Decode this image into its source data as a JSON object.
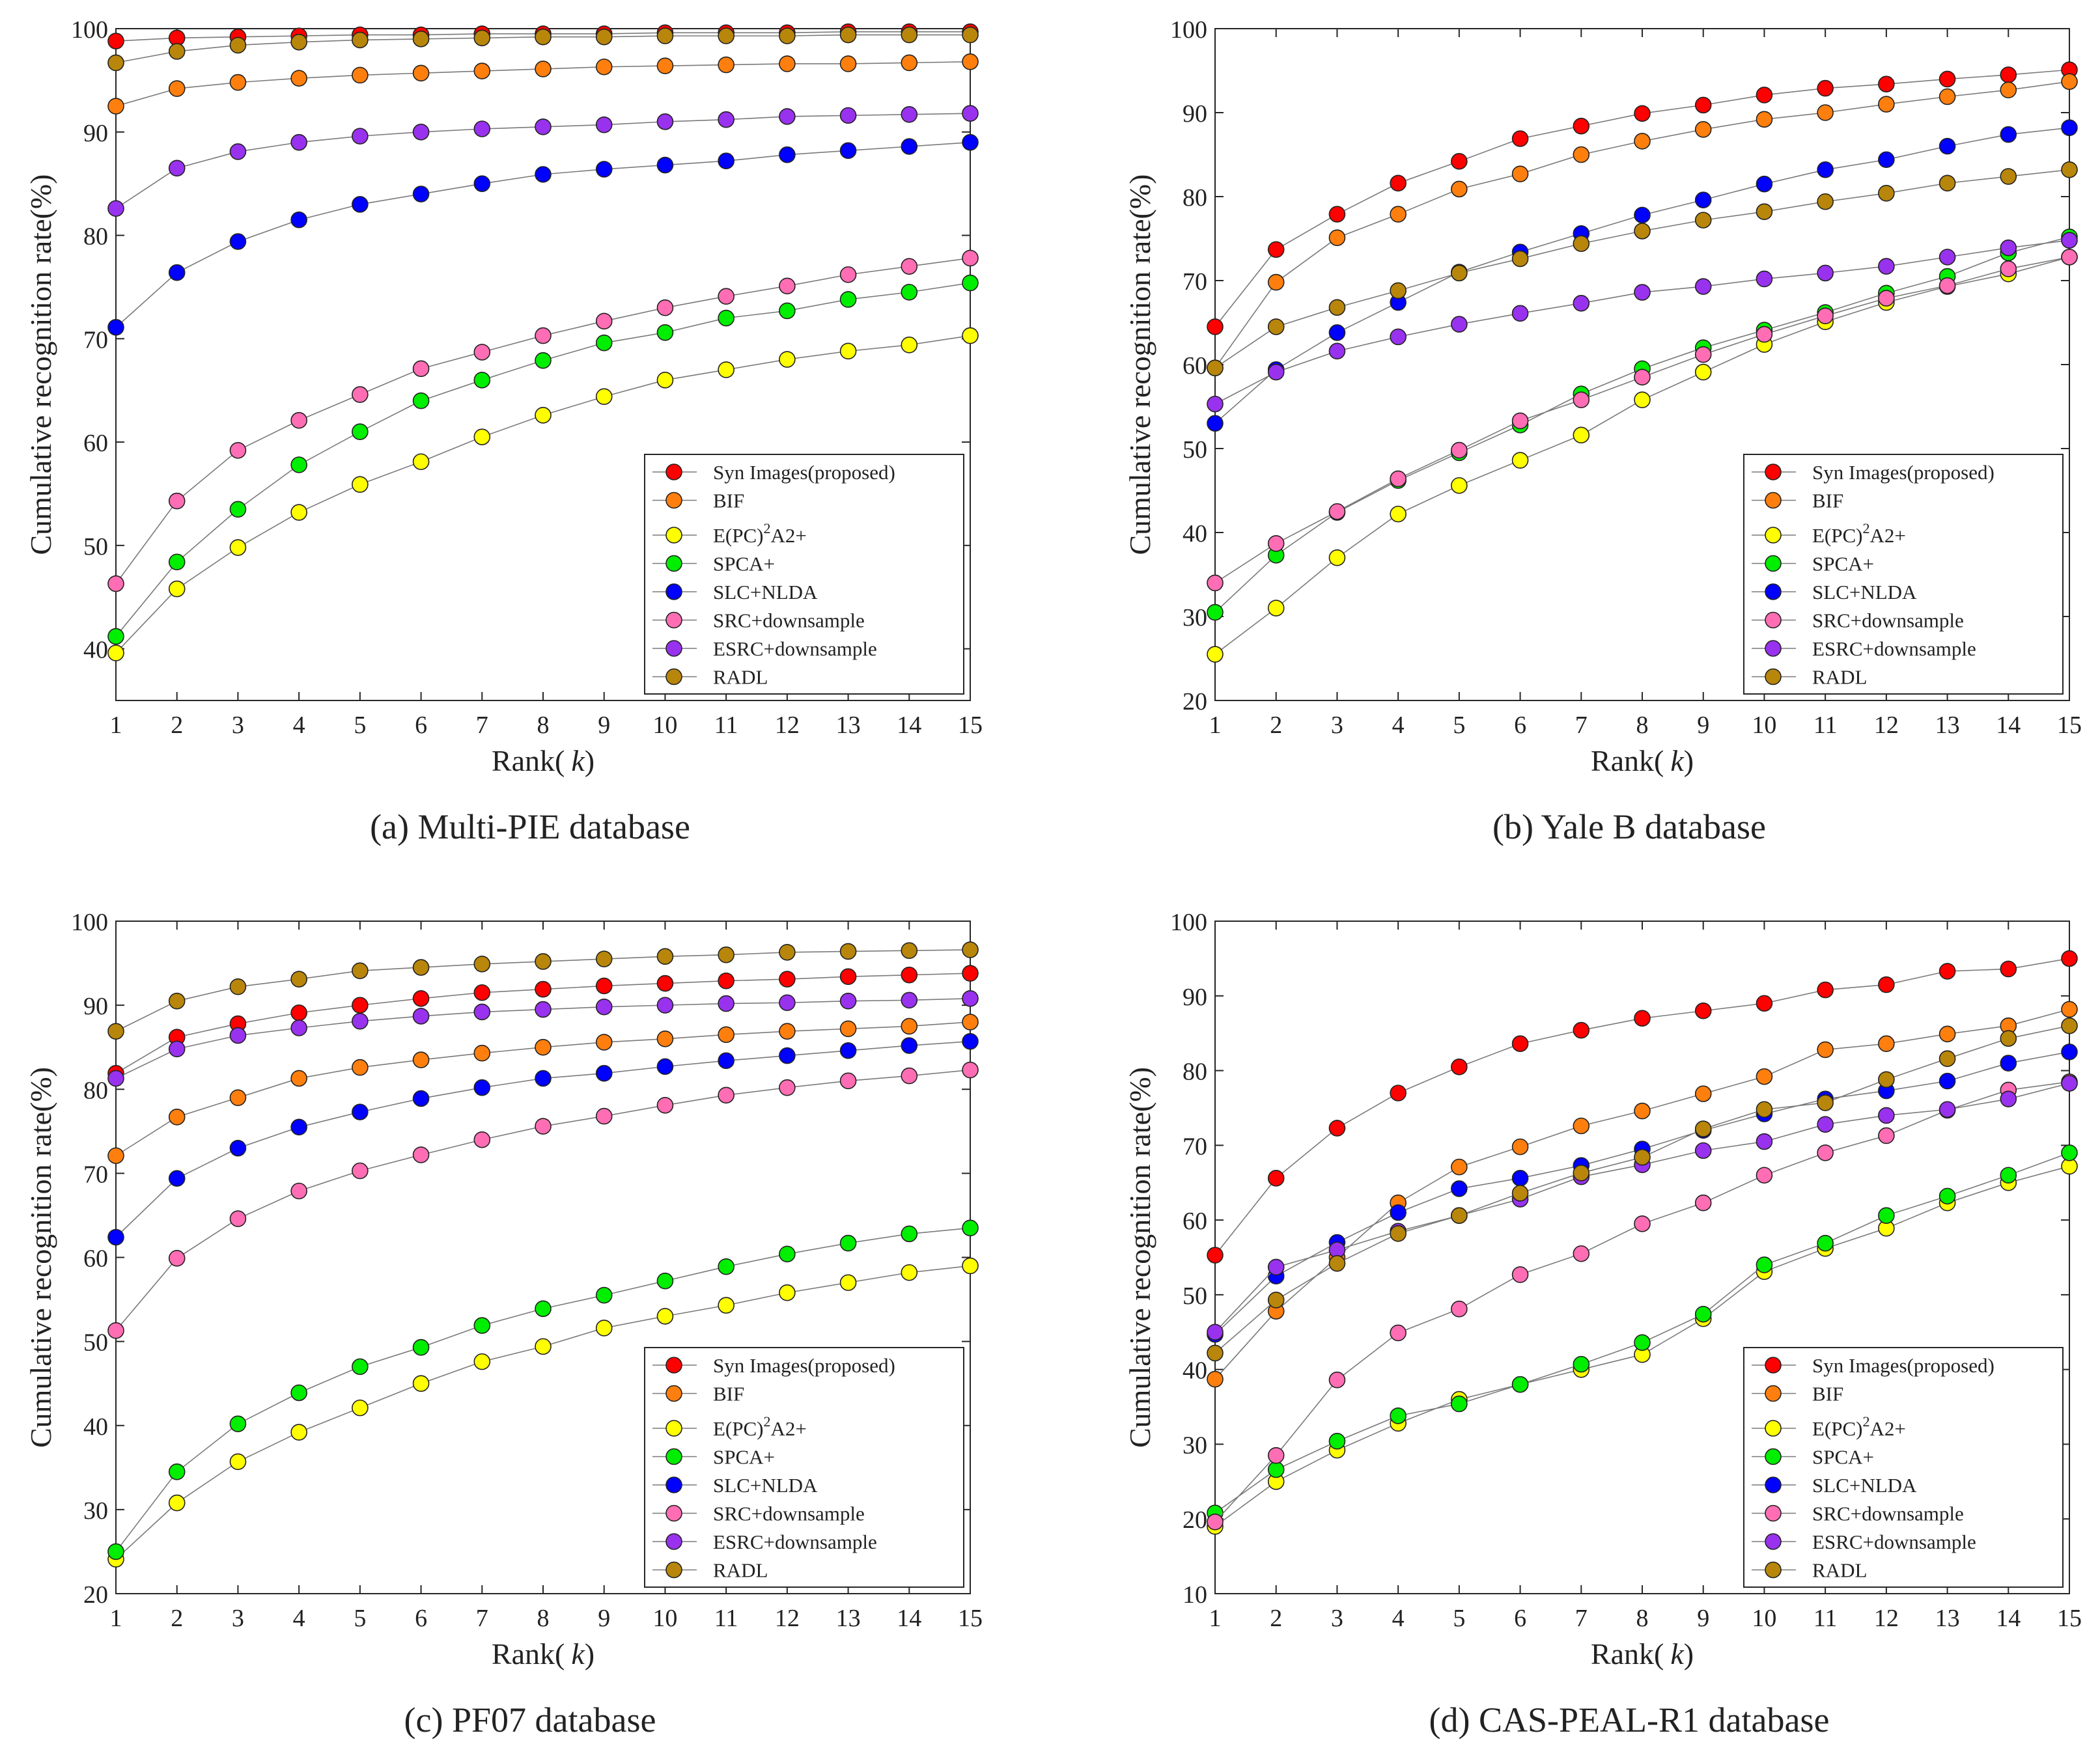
{
  "chart_data": [
    {
      "type": "line",
      "caption": "(a)  Multi-PIE  database",
      "xlabel_prefix": "Rank(",
      "xlabel_var": "k",
      "xlabel_suffix": ")",
      "ylabel": "Cumulative recognition rate(%)",
      "xlim": [
        1,
        15
      ],
      "ylim": [
        35,
        100
      ],
      "yticks": [
        40,
        50,
        60,
        70,
        80,
        90,
        100
      ],
      "x": [
        1,
        2,
        3,
        4,
        5,
        6,
        7,
        8,
        9,
        10,
        11,
        12,
        13,
        14,
        15
      ],
      "series": [
        {
          "name": "Syn Images(proposed)",
          "color": "#ff0000",
          "values": [
            98.8,
            99.1,
            99.2,
            99.3,
            99.4,
            99.4,
            99.5,
            99.5,
            99.5,
            99.6,
            99.6,
            99.6,
            99.7,
            99.7,
            99.7
          ]
        },
        {
          "name": "BIF",
          "color": "#ff7f0e",
          "values": [
            92.5,
            94.2,
            94.8,
            95.2,
            95.5,
            95.7,
            95.9,
            96.1,
            96.3,
            96.4,
            96.5,
            96.6,
            96.6,
            96.7,
            96.8
          ]
        },
        {
          "name": "E(PC)2A2+",
          "color": "#ffff00",
          "values": [
            39.6,
            45.8,
            49.8,
            53.2,
            55.9,
            58.1,
            60.5,
            62.6,
            64.4,
            66.0,
            67.0,
            68.0,
            68.8,
            69.4,
            70.3
          ]
        },
        {
          "name": "SPCA+",
          "color": "#00ee00",
          "values": [
            41.2,
            48.4,
            53.5,
            57.8,
            61.0,
            64.0,
            66.0,
            67.9,
            69.6,
            70.6,
            72.0,
            72.7,
            73.8,
            74.5,
            75.4
          ]
        },
        {
          "name": "SLC+NLDA",
          "color": "#0000ff",
          "values": [
            71.1,
            76.4,
            79.4,
            81.5,
            83.0,
            84.0,
            85.0,
            85.9,
            86.4,
            86.8,
            87.2,
            87.8,
            88.2,
            88.6,
            89.0
          ]
        },
        {
          "name": "SRC+downsample",
          "color": "#ff6eb4",
          "values": [
            46.3,
            54.3,
            59.2,
            62.1,
            64.6,
            67.1,
            68.7,
            70.3,
            71.7,
            73.0,
            74.1,
            75.1,
            76.2,
            77.0,
            77.8
          ]
        },
        {
          "name": "ESRC+downsample",
          "color": "#9932ee",
          "values": [
            82.6,
            86.5,
            88.1,
            89.0,
            89.6,
            90.0,
            90.3,
            90.5,
            90.7,
            91.0,
            91.2,
            91.5,
            91.6,
            91.7,
            91.8
          ]
        },
        {
          "name": "RADL",
          "color": "#b8860b",
          "values": [
            96.7,
            97.8,
            98.4,
            98.7,
            98.9,
            99.0,
            99.1,
            99.2,
            99.2,
            99.3,
            99.3,
            99.3,
            99.4,
            99.4,
            99.4
          ]
        }
      ],
      "legend_labels": [
        "Syn Images(proposed)",
        "BIF",
        "E(PC)",
        "2",
        "A2+",
        "SPCA+",
        "SLC+NLDA",
        "SRC+downsample",
        "ESRC+downsample",
        "RADL"
      ],
      "legend_position": "bottom-right"
    },
    {
      "type": "line",
      "caption": "(b)  Yale B  database",
      "xlabel_prefix": "Rank(",
      "xlabel_var": "k",
      "xlabel_suffix": ")",
      "ylabel": "Cumulative recognition rate(%)",
      "xlim": [
        1,
        15
      ],
      "ylim": [
        20,
        100
      ],
      "yticks": [
        20,
        30,
        40,
        50,
        60,
        70,
        80,
        90,
        100
      ],
      "x": [
        1,
        2,
        3,
        4,
        5,
        6,
        7,
        8,
        9,
        10,
        11,
        12,
        13,
        14,
        15
      ],
      "series": [
        {
          "name": "Syn Images(proposed)",
          "color": "#ff0000",
          "values": [
            64.5,
            73.7,
            77.9,
            81.6,
            84.2,
            86.9,
            88.4,
            89.9,
            90.9,
            92.1,
            92.9,
            93.4,
            94.0,
            94.5,
            95.1
          ]
        },
        {
          "name": "BIF",
          "color": "#ff7f0e",
          "values": [
            59.6,
            69.8,
            75.1,
            77.9,
            80.9,
            82.7,
            85.0,
            86.6,
            88.0,
            89.2,
            90.0,
            91.0,
            91.9,
            92.7,
            93.7
          ]
        },
        {
          "name": "E(PC)2A2+",
          "color": "#ffff00",
          "values": [
            25.5,
            31.0,
            37.0,
            42.2,
            45.6,
            48.6,
            51.6,
            55.8,
            59.1,
            62.4,
            65.1,
            67.4,
            69.3,
            70.8,
            72.8
          ]
        },
        {
          "name": "SPCA+",
          "color": "#00ee00",
          "values": [
            30.5,
            37.3,
            42.4,
            46.2,
            49.5,
            52.8,
            56.5,
            59.5,
            62.0,
            64.1,
            66.2,
            68.5,
            70.5,
            73.3,
            75.2
          ]
        },
        {
          "name": "SLC+NLDA",
          "color": "#0000ff",
          "values": [
            53.0,
            59.4,
            63.8,
            67.4,
            71.0,
            73.4,
            75.6,
            77.8,
            79.6,
            81.5,
            83.2,
            84.4,
            86.0,
            87.4,
            88.2
          ]
        },
        {
          "name": "SRC+downsample",
          "color": "#ff6eb4",
          "values": [
            34.0,
            38.7,
            42.5,
            46.4,
            49.8,
            53.3,
            55.8,
            58.5,
            61.2,
            63.6,
            65.8,
            67.9,
            69.4,
            71.4,
            72.8
          ]
        },
        {
          "name": "ESRC+downsample",
          "color": "#9932ee",
          "values": [
            55.3,
            59.1,
            61.6,
            63.3,
            64.8,
            66.1,
            67.3,
            68.6,
            69.3,
            70.2,
            70.9,
            71.7,
            72.8,
            73.9,
            74.8
          ]
        },
        {
          "name": "RADL",
          "color": "#b8860b",
          "values": [
            59.6,
            64.5,
            66.8,
            68.8,
            70.9,
            72.6,
            74.4,
            75.9,
            77.2,
            78.2,
            79.4,
            80.4,
            81.6,
            82.4,
            83.2
          ]
        }
      ],
      "legend_labels": [
        "Syn Images(proposed)",
        "BIF",
        "E(PC)",
        "2",
        "A2+",
        "SPCA+",
        "SLC+NLDA",
        "SRC+downsample",
        "ESRC+downsample",
        "RADL"
      ],
      "legend_position": "bottom-right"
    },
    {
      "type": "line",
      "caption": "(c)  PF07  database",
      "xlabel_prefix": "Rank(",
      "xlabel_var": "k",
      "xlabel_suffix": ")",
      "ylabel": "Cumulative recognition rate(%)",
      "xlim": [
        1,
        15
      ],
      "ylim": [
        20,
        100
      ],
      "yticks": [
        20,
        30,
        40,
        50,
        60,
        70,
        80,
        90,
        100
      ],
      "x": [
        1,
        2,
        3,
        4,
        5,
        6,
        7,
        8,
        9,
        10,
        11,
        12,
        13,
        14,
        15
      ],
      "series": [
        {
          "name": "Syn Images(proposed)",
          "color": "#ff0000",
          "values": [
            81.9,
            86.2,
            87.8,
            89.1,
            90.0,
            90.8,
            91.5,
            91.9,
            92.3,
            92.6,
            92.9,
            93.1,
            93.4,
            93.6,
            93.8
          ]
        },
        {
          "name": "BIF",
          "color": "#ff7f0e",
          "values": [
            72.1,
            76.7,
            79.0,
            81.3,
            82.6,
            83.5,
            84.3,
            85.0,
            85.6,
            86.0,
            86.5,
            86.9,
            87.2,
            87.5,
            88.0
          ]
        },
        {
          "name": "E(PC)2A2+",
          "color": "#ffff00",
          "values": [
            24.1,
            30.8,
            35.7,
            39.2,
            42.1,
            45.0,
            47.6,
            49.4,
            51.6,
            53.0,
            54.3,
            55.8,
            57.0,
            58.2,
            59.0
          ]
        },
        {
          "name": "SPCA+",
          "color": "#00ee00",
          "values": [
            25.0,
            34.5,
            40.2,
            43.9,
            47.0,
            49.3,
            51.9,
            53.9,
            55.5,
            57.2,
            58.9,
            60.4,
            61.7,
            62.8,
            63.5
          ]
        },
        {
          "name": "SLC+NLDA",
          "color": "#0000ff",
          "values": [
            62.4,
            69.4,
            73.0,
            75.5,
            77.3,
            78.9,
            80.2,
            81.3,
            81.9,
            82.7,
            83.4,
            84.0,
            84.6,
            85.2,
            85.7
          ]
        },
        {
          "name": "SRC+downsample",
          "color": "#ff6eb4",
          "values": [
            51.3,
            59.9,
            64.6,
            67.9,
            70.3,
            72.2,
            74.0,
            75.6,
            76.8,
            78.1,
            79.3,
            80.2,
            81.0,
            81.6,
            82.3
          ]
        },
        {
          "name": "ESRC+downsample",
          "color": "#9932ee",
          "values": [
            81.3,
            84.8,
            86.4,
            87.3,
            88.1,
            88.7,
            89.2,
            89.5,
            89.8,
            90.0,
            90.2,
            90.3,
            90.5,
            90.6,
            90.8
          ]
        },
        {
          "name": "RADL",
          "color": "#b8860b",
          "values": [
            86.9,
            90.5,
            92.2,
            93.1,
            94.1,
            94.5,
            94.9,
            95.2,
            95.5,
            95.8,
            96.0,
            96.3,
            96.4,
            96.5,
            96.6
          ]
        }
      ],
      "legend_labels": [
        "Syn Images(proposed)",
        "BIF",
        "E(PC)",
        "2",
        "A2+",
        "SPCA+",
        "SLC+NLDA",
        "SRC+downsample",
        "ESRC+downsample",
        "RADL"
      ],
      "legend_position": "bottom-right"
    },
    {
      "type": "line",
      "caption": "(d)  CAS-PEAL-R1  database",
      "xlabel_prefix": "Rank(",
      "xlabel_var": "k",
      "xlabel_suffix": ")",
      "ylabel": "Cumulative recognition rate(%)",
      "xlim": [
        1,
        15
      ],
      "ylim": [
        10,
        100
      ],
      "yticks": [
        10,
        20,
        30,
        40,
        50,
        60,
        70,
        80,
        90,
        100
      ],
      "x": [
        1,
        2,
        3,
        4,
        5,
        6,
        7,
        8,
        9,
        10,
        11,
        12,
        13,
        14,
        15
      ],
      "series": [
        {
          "name": "Syn Images(proposed)",
          "color": "#ff0000",
          "values": [
            55.3,
            65.6,
            72.3,
            77.0,
            80.5,
            83.6,
            85.4,
            87.0,
            88.0,
            89.0,
            90.8,
            91.5,
            93.3,
            93.6,
            95.0
          ]
        },
        {
          "name": "BIF",
          "color": "#ff7f0e",
          "values": [
            38.7,
            47.8,
            55.0,
            62.3,
            67.1,
            69.8,
            72.6,
            74.6,
            76.9,
            79.2,
            82.8,
            83.6,
            84.9,
            86.0,
            88.2
          ]
        },
        {
          "name": "E(PC)2A2+",
          "color": "#ffff00",
          "values": [
            19.0,
            25.0,
            29.2,
            32.8,
            36.0,
            38.0,
            40.0,
            42.0,
            46.8,
            53.1,
            56.2,
            58.9,
            62.3,
            65.0,
            67.2
          ]
        },
        {
          "name": "SPCA+",
          "color": "#00ee00",
          "values": [
            20.8,
            26.6,
            30.4,
            33.8,
            35.4,
            38.0,
            40.7,
            43.6,
            47.4,
            54.0,
            56.9,
            60.6,
            63.2,
            66.0,
            69.0
          ]
        },
        {
          "name": "SLC+NLDA",
          "color": "#0000ff",
          "values": [
            44.7,
            52.5,
            57.0,
            61.0,
            64.2,
            65.6,
            67.3,
            69.5,
            72.0,
            74.2,
            76.2,
            77.3,
            78.6,
            81.0,
            82.5
          ]
        },
        {
          "name": "SRC+downsample",
          "color": "#ff6eb4",
          "values": [
            19.6,
            28.5,
            38.6,
            44.9,
            48.1,
            52.7,
            55.5,
            59.5,
            62.3,
            66.0,
            69.0,
            71.3,
            74.7,
            77.4,
            78.5
          ]
        },
        {
          "name": "ESRC+downsample",
          "color": "#9932ee",
          "values": [
            45.0,
            53.7,
            56.0,
            58.5,
            60.6,
            62.8,
            65.8,
            67.4,
            69.3,
            70.5,
            72.8,
            74.0,
            74.8,
            76.2,
            78.3
          ]
        },
        {
          "name": "RADL",
          "color": "#b8860b",
          "values": [
            42.2,
            49.3,
            54.2,
            58.2,
            60.6,
            63.6,
            66.3,
            68.4,
            72.2,
            74.8,
            75.7,
            78.8,
            81.6,
            84.3,
            86.0
          ]
        }
      ],
      "legend_labels": [
        "Syn Images(proposed)",
        "BIF",
        "E(PC)",
        "2",
        "A2+",
        "SPCA+",
        "SLC+NLDA",
        "SRC+downsample",
        "ESRC+downsample",
        "RADL"
      ],
      "legend_position": "bottom-right"
    }
  ]
}
